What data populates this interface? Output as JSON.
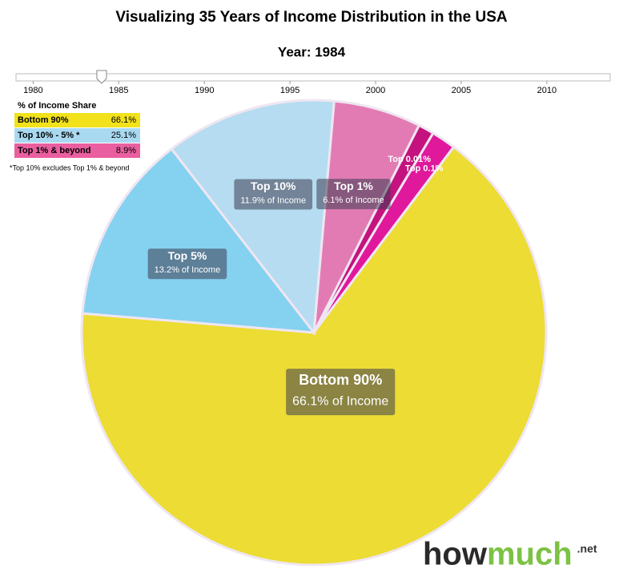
{
  "title": "Visualizing 35 Years of Income Distribution in the USA",
  "slider": {
    "label": "Year: 1984",
    "value": 1984,
    "range": [
      1979,
      2013.7
    ],
    "ticks": [
      1980,
      1985,
      1990,
      1995,
      2000,
      2005,
      2010
    ]
  },
  "legend_table": {
    "title": "% of Income Share",
    "rows": [
      [
        "Bottom 90%",
        "66.1%"
      ],
      [
        "Top 10% - 5% *",
        "25.1%"
      ],
      [
        "Top 1% & beyond",
        "8.9%"
      ]
    ],
    "colors": [
      "#f2e21c",
      "#a9d9f1",
      "#ea5fa0"
    ],
    "note": "*Top 10% excludes Top 1% & beyond"
  },
  "chart_data": {
    "type": "pie",
    "categories": [
      "Top 1%",
      "Top 0.01%",
      "Top 0.1%",
      "Bottom 90%",
      "Top 5%",
      "Top 10%"
    ],
    "values": [
      6.1,
      1.1,
      1.7,
      66.1,
      13.2,
      11.9
    ],
    "value_labels": [
      "6.1% of Income",
      null,
      null,
      "66.1% of Income",
      "13.2% of Income",
      "11.9% of Income"
    ],
    "colors": [
      "#e27bb4",
      "#c4137e",
      "#e0189c",
      "#ecdc33",
      "#85d1f0",
      "#b5dcf0"
    ]
  },
  "logo": {
    "parts": [
      "how",
      "much",
      ".net"
    ]
  }
}
